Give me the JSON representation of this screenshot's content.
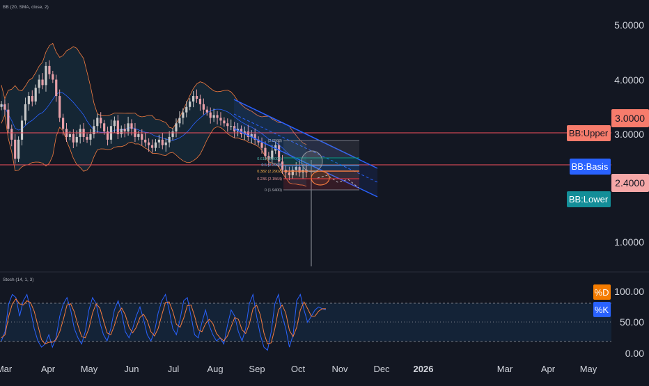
{
  "indicators": {
    "bb_legend": "BB (20, SMA, close, 2)",
    "stoch_legend": "Stoch (14, 1, 3)"
  },
  "price_axis": {
    "ticks": [
      "5.0000",
      "4.0000",
      "3.0000",
      "1.0000"
    ]
  },
  "price_labels": {
    "upper_value": "3.0000",
    "lower_value": "2.4000",
    "bb_upper": "BB:Upper",
    "bb_basis": "BB:Basis",
    "bb_lower": "BB:Lower"
  },
  "stoch_axis": {
    "ticks": [
      "100.00",
      "50.00",
      "0.00"
    ],
    "d_label": "%D",
    "k_label": "%K"
  },
  "time_axis": {
    "labels": [
      "Mar",
      "Apr",
      "May",
      "Jun",
      "Jul",
      "Aug",
      "Sep",
      "Oct",
      "Nov",
      "Dec",
      "2026",
      "Mar",
      "Apr",
      "May"
    ]
  },
  "fib_levels": [
    {
      "label": "(2.8568)"
    },
    {
      "label": "0.618 (2.5005)"
    },
    {
      "label": "0.5 (2.3968)"
    },
    {
      "label": "0.382 (2.2902)"
    },
    {
      "label": "0.236 (2.1564)"
    },
    {
      "label": "0 (1.9400)"
    }
  ],
  "colors": {
    "background": "#131722",
    "candle_up": "#c8c8c8",
    "candle_down": "#e8a0a8",
    "bb_basis": "#2962ff",
    "bb_band": "#f57c3f",
    "bb_fill": "rgba(34,110,140,0.18)",
    "channel": "#2962ff",
    "hline": "#f7525f",
    "upper_tag": "#f77c6c",
    "lower_tag": "#f5a7a7",
    "basis_tag": "#2962ff",
    "lowerbb_tag": "#138e98",
    "stoch_k": "#2962ff",
    "stoch_d": "#f57c3f",
    "stoch_fill": "rgba(33,150,243,0.12)"
  },
  "series": {
    "candles": [
      3.55,
      3.45,
      3.1,
      2.9,
      2.55,
      2.9,
      3.25,
      3.55,
      3.7,
      3.6,
      3.85,
      4.0,
      3.9,
      4.25,
      4.1,
      4.0,
      3.7,
      3.3,
      3.1,
      2.95,
      3.0,
      2.85,
      2.95,
      3.1,
      2.95,
      2.9,
      3.0,
      3.15,
      3.3,
      3.2,
      3.05,
      2.9,
      3.15,
      3.25,
      3.0,
      3.1,
      3.05,
      3.2,
      3.1,
      2.95,
      3.0,
      2.9,
      2.85,
      2.8,
      2.75,
      2.85,
      2.9,
      2.8,
      2.85,
      2.95,
      3.05,
      3.2,
      3.3,
      3.4,
      3.5,
      3.6,
      3.7,
      3.65,
      3.55,
      3.45,
      3.4,
      3.3,
      3.35,
      3.3,
      3.25,
      3.2,
      3.15,
      3.15,
      3.05,
      3.1,
      3.0,
      3.05,
      2.95,
      3.0,
      2.9,
      2.85,
      2.75,
      2.6,
      2.55,
      2.7,
      2.8,
      2.5,
      2.35,
      2.3,
      2.25,
      2.35,
      2.4,
      2.3,
      2.35,
      2.3
    ],
    "stoch_k": [
      20,
      35,
      80,
      95,
      90,
      60,
      85,
      95,
      70,
      40,
      20,
      10,
      15,
      30,
      10,
      25,
      60,
      80,
      90,
      70,
      40,
      25,
      15,
      35,
      70,
      90,
      80,
      50,
      30,
      20,
      40,
      70,
      85,
      65,
      35,
      25,
      40,
      60,
      75,
      55,
      30,
      20,
      35,
      65,
      85,
      95,
      70,
      40,
      30,
      55,
      85,
      90,
      60,
      30,
      25,
      50,
      70,
      45,
      30,
      20,
      25,
      15,
      45,
      70,
      60,
      35,
      20,
      40,
      80,
      95,
      60,
      30,
      10,
      5,
      35,
      80,
      95,
      60,
      40,
      10,
      30,
      85,
      95,
      70,
      50,
      60,
      70,
      75,
      72,
      70
    ],
    "stoch_d": [
      25,
      30,
      60,
      80,
      88,
      80,
      78,
      85,
      82,
      68,
      45,
      22,
      15,
      18,
      18,
      22,
      35,
      55,
      78,
      80,
      67,
      45,
      27,
      25,
      40,
      65,
      80,
      73,
      53,
      33,
      30,
      45,
      65,
      73,
      62,
      42,
      33,
      42,
      58,
      63,
      53,
      35,
      28,
      40,
      62,
      82,
      83,
      68,
      47,
      42,
      57,
      77,
      78,
      60,
      38,
      35,
      48,
      55,
      48,
      32,
      25,
      20,
      28,
      43,
      58,
      55,
      38,
      32,
      47,
      72,
      78,
      62,
      33,
      15,
      17,
      40,
      70,
      78,
      65,
      37,
      27,
      42,
      70,
      83,
      72,
      60,
      60,
      68,
      72,
      72
    ]
  }
}
